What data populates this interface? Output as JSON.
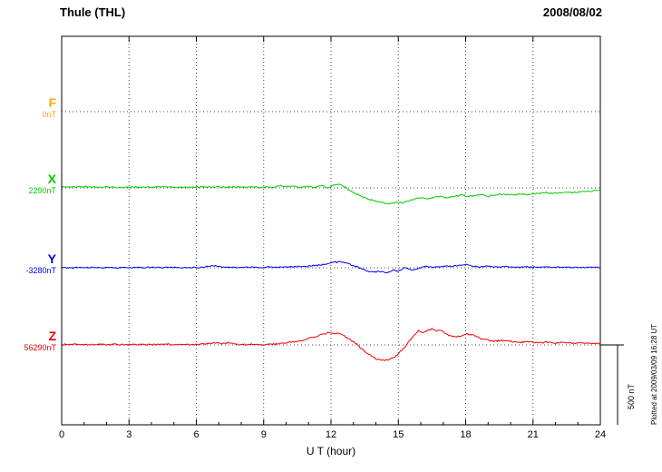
{
  "chart_data": {
    "type": "line",
    "title": "Thule (THL)",
    "date_label": "2008/08/02",
    "xlabel": "U T (hour)",
    "xlim": [
      0,
      24
    ],
    "x_ticks": [
      0,
      3,
      6,
      9,
      12,
      15,
      18,
      21,
      24
    ],
    "grid": "dotted vertical every 3 hours, dotted horizontal baseline per component",
    "scale_bar": {
      "label": "500 nT",
      "nT": 500
    },
    "plotted_at": "Plotted at 2009/03/09 16:28 UT",
    "components": [
      {
        "name": "F",
        "baseline_label": "0nT",
        "color": "#ffaa00",
        "noise_nT": 0,
        "points": []
      },
      {
        "name": "X",
        "baseline_label": "2290nT",
        "color": "#00cc00",
        "noise_nT": 6,
        "points": [
          [
            0,
            8
          ],
          [
            0.5,
            5
          ],
          [
            1,
            7
          ],
          [
            1.5,
            4
          ],
          [
            2,
            6
          ],
          [
            2.5,
            3
          ],
          [
            3,
            5
          ],
          [
            3.5,
            6
          ],
          [
            4,
            4
          ],
          [
            4.5,
            7
          ],
          [
            5,
            5
          ],
          [
            5.5,
            3
          ],
          [
            6,
            5
          ],
          [
            6.5,
            6
          ],
          [
            7,
            9
          ],
          [
            7.3,
            3
          ],
          [
            7.6,
            7
          ],
          [
            8,
            4
          ],
          [
            8.5,
            6
          ],
          [
            9,
            3
          ],
          [
            9.4,
            5
          ],
          [
            9.7,
            13
          ],
          [
            10,
            7
          ],
          [
            10.3,
            11
          ],
          [
            10.6,
            5
          ],
          [
            11,
            9
          ],
          [
            11.3,
            2
          ],
          [
            11.6,
            13
          ],
          [
            11.9,
            -4
          ],
          [
            12.1,
            15
          ],
          [
            12.35,
            24
          ],
          [
            12.6,
            5
          ],
          [
            12.8,
            -12
          ],
          [
            13,
            -30
          ],
          [
            13.3,
            -50
          ],
          [
            13.6,
            -68
          ],
          [
            13.9,
            -80
          ],
          [
            14.2,
            -92
          ],
          [
            14.5,
            -100
          ],
          [
            14.8,
            -95
          ],
          [
            15,
            -88
          ],
          [
            15.2,
            -95
          ],
          [
            15.4,
            -85
          ],
          [
            15.7,
            -72
          ],
          [
            16,
            -62
          ],
          [
            16.3,
            -72
          ],
          [
            16.6,
            -58
          ],
          [
            16.9,
            -52
          ],
          [
            17.2,
            -62
          ],
          [
            17.5,
            -55
          ],
          [
            17.8,
            -42
          ],
          [
            18.1,
            -55
          ],
          [
            18.4,
            -48
          ],
          [
            18.7,
            -44
          ],
          [
            19,
            -52
          ],
          [
            19.3,
            -45
          ],
          [
            19.6,
            -40
          ],
          [
            20,
            -46
          ],
          [
            20.4,
            -38
          ],
          [
            20.8,
            -42
          ],
          [
            21.2,
            -34
          ],
          [
            21.6,
            -30
          ],
          [
            22,
            -34
          ],
          [
            22.4,
            -27
          ],
          [
            22.8,
            -30
          ],
          [
            23.2,
            -23
          ],
          [
            23.6,
            -20
          ],
          [
            24,
            -16
          ]
        ]
      },
      {
        "name": "Y",
        "baseline_label": "-3280nT",
        "color": "#0000ee",
        "noise_nT": 5,
        "points": [
          [
            0,
            2
          ],
          [
            0.5,
            0
          ],
          [
            1,
            3
          ],
          [
            1.5,
            1
          ],
          [
            2,
            2
          ],
          [
            2.5,
            0
          ],
          [
            3,
            2
          ],
          [
            3.5,
            1
          ],
          [
            4,
            3
          ],
          [
            4.5,
            1
          ],
          [
            5,
            2
          ],
          [
            5.5,
            0
          ],
          [
            6,
            2
          ],
          [
            6.5,
            8
          ],
          [
            6.8,
            12
          ],
          [
            7.1,
            6
          ],
          [
            7.5,
            3
          ],
          [
            8,
            2
          ],
          [
            8.5,
            4
          ],
          [
            9,
            2
          ],
          [
            9.5,
            3
          ],
          [
            10,
            5
          ],
          [
            10.5,
            8
          ],
          [
            11,
            10
          ],
          [
            11.4,
            16
          ],
          [
            11.8,
            24
          ],
          [
            12.1,
            34
          ],
          [
            12.4,
            38
          ],
          [
            12.7,
            30
          ],
          [
            13,
            14
          ],
          [
            13.3,
            -2
          ],
          [
            13.6,
            -18
          ],
          [
            13.9,
            -28
          ],
          [
            14.2,
            -22
          ],
          [
            14.5,
            -32
          ],
          [
            14.8,
            -14
          ],
          [
            15,
            -22
          ],
          [
            15.3,
            2
          ],
          [
            15.6,
            -14
          ],
          [
            15.9,
            -4
          ],
          [
            16.2,
            8
          ],
          [
            16.5,
            2
          ],
          [
            16.8,
            6
          ],
          [
            17.1,
            12
          ],
          [
            17.4,
            8
          ],
          [
            17.7,
            16
          ],
          [
            18,
            22
          ],
          [
            18.3,
            12
          ],
          [
            18.6,
            6
          ],
          [
            19,
            10
          ],
          [
            19.4,
            4
          ],
          [
            19.8,
            8
          ],
          [
            20.2,
            2
          ],
          [
            20.6,
            6
          ],
          [
            21,
            3
          ],
          [
            21.5,
            6
          ],
          [
            22,
            2
          ],
          [
            22.5,
            5
          ],
          [
            23,
            2
          ],
          [
            23.5,
            4
          ],
          [
            24,
            2
          ]
        ]
      },
      {
        "name": "Z",
        "baseline_label": "56290nT",
        "color": "#ee0000",
        "noise_nT": 6,
        "points": [
          [
            0,
            2
          ],
          [
            0.5,
            4
          ],
          [
            1,
            1
          ],
          [
            1.5,
            3
          ],
          [
            2,
            2
          ],
          [
            2.5,
            4
          ],
          [
            3,
            2
          ],
          [
            3.5,
            3
          ],
          [
            4,
            2
          ],
          [
            4.5,
            4
          ],
          [
            5,
            2
          ],
          [
            5.5,
            3
          ],
          [
            6,
            2
          ],
          [
            6.5,
            8
          ],
          [
            6.8,
            14
          ],
          [
            7.1,
            9
          ],
          [
            7.4,
            12
          ],
          [
            7.8,
            4
          ],
          [
            8.2,
            2
          ],
          [
            8.6,
            4
          ],
          [
            9,
            1
          ],
          [
            9.4,
            4
          ],
          [
            9.8,
            10
          ],
          [
            10.2,
            18
          ],
          [
            10.6,
            26
          ],
          [
            11,
            40
          ],
          [
            11.3,
            52
          ],
          [
            11.6,
            66
          ],
          [
            11.9,
            80
          ],
          [
            12.1,
            70
          ],
          [
            12.3,
            76
          ],
          [
            12.5,
            66
          ],
          [
            12.7,
            44
          ],
          [
            12.9,
            28
          ],
          [
            13.1,
            10
          ],
          [
            13.4,
            -28
          ],
          [
            13.7,
            -62
          ],
          [
            14,
            -88
          ],
          [
            14.3,
            -98
          ],
          [
            14.6,
            -92
          ],
          [
            14.9,
            -70
          ],
          [
            15.1,
            -40
          ],
          [
            15.3,
            -10
          ],
          [
            15.5,
            25
          ],
          [
            15.7,
            60
          ],
          [
            15.9,
            88
          ],
          [
            16.1,
            78
          ],
          [
            16.3,
            92
          ],
          [
            16.5,
            100
          ],
          [
            16.7,
            88
          ],
          [
            16.9,
            92
          ],
          [
            17.2,
            66
          ],
          [
            17.5,
            52
          ],
          [
            17.8,
            58
          ],
          [
            18.1,
            68
          ],
          [
            18.4,
            60
          ],
          [
            18.7,
            38
          ],
          [
            19,
            30
          ],
          [
            19.3,
            24
          ],
          [
            19.6,
            28
          ],
          [
            20,
            24
          ],
          [
            20.4,
            16
          ],
          [
            20.8,
            22
          ],
          [
            21.2,
            14
          ],
          [
            21.6,
            18
          ],
          [
            22,
            12
          ],
          [
            22.4,
            16
          ],
          [
            22.8,
            10
          ],
          [
            23.2,
            14
          ],
          [
            23.6,
            8
          ],
          [
            24,
            10
          ]
        ]
      }
    ]
  }
}
